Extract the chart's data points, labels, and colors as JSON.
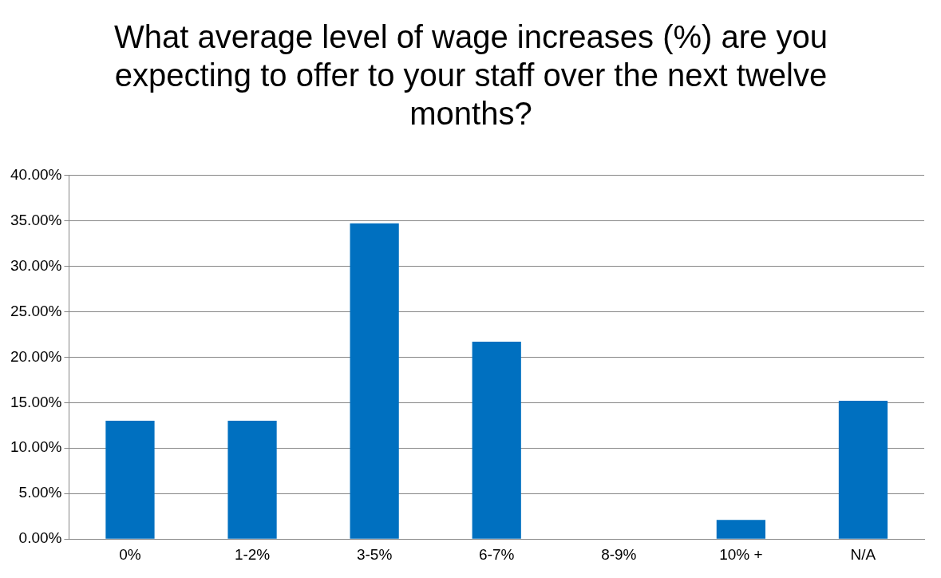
{
  "chart_data": {
    "type": "bar",
    "title": "What average level of wage increases (%) are you expecting to offer to your staff over the next twelve months?",
    "categories": [
      "0%",
      "1-2%",
      "3-5%",
      "6-7%",
      "8-9%",
      "10% +",
      "N/A"
    ],
    "values": [
      13.0,
      13.0,
      34.7,
      21.7,
      0,
      2.1,
      15.2
    ],
    "color": "#0070c0",
    "ylim": [
      0,
      40
    ],
    "yticks": [
      {
        "value": 0,
        "label": "0.00%"
      },
      {
        "value": 5,
        "label": "5.00%"
      },
      {
        "value": 10,
        "label": "10.00%"
      },
      {
        "value": 15,
        "label": "15.00%"
      },
      {
        "value": 20,
        "label": "20.00%"
      },
      {
        "value": 25,
        "label": "25.00%"
      },
      {
        "value": 30,
        "label": "30.00%"
      },
      {
        "value": 35,
        "label": "35.00%"
      },
      {
        "value": 40,
        "label": "40.00%"
      }
    ],
    "grid": "y",
    "legend": false
  }
}
